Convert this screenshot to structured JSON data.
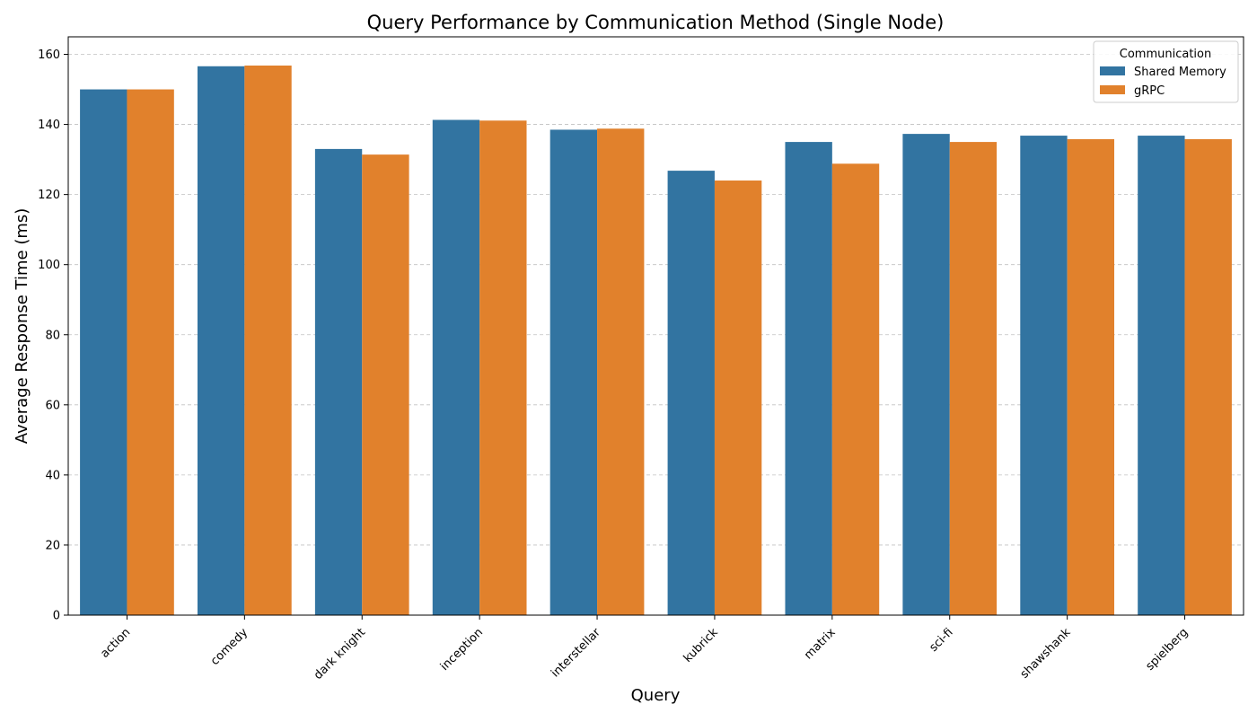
{
  "chart_data": {
    "type": "bar",
    "title": "Query Performance by Communication Method (Single Node)",
    "xlabel": "Query",
    "ylabel": "Average Response Time (ms)",
    "categories": [
      "action",
      "comedy",
      "dark knight",
      "inception",
      "interstellar",
      "kubrick",
      "matrix",
      "sci-fi",
      "shawshank",
      "spielberg"
    ],
    "series": [
      {
        "name": "Shared Memory",
        "color": "#3274a1",
        "values": [
          150.0,
          156.6,
          133.0,
          141.3,
          138.5,
          126.8,
          135.0,
          137.3,
          136.8,
          136.8
        ]
      },
      {
        "name": "gRPC",
        "color": "#e1812c",
        "values": [
          150.0,
          156.8,
          131.4,
          141.1,
          138.8,
          124.0,
          128.8,
          135.0,
          135.8,
          135.8
        ]
      }
    ],
    "ylim": [
      0,
      165
    ],
    "yticks": [
      0,
      20,
      40,
      60,
      80,
      100,
      120,
      140,
      160
    ],
    "grid": "y-dashed",
    "legend": {
      "title": "Communication",
      "placement": "top-right"
    }
  }
}
